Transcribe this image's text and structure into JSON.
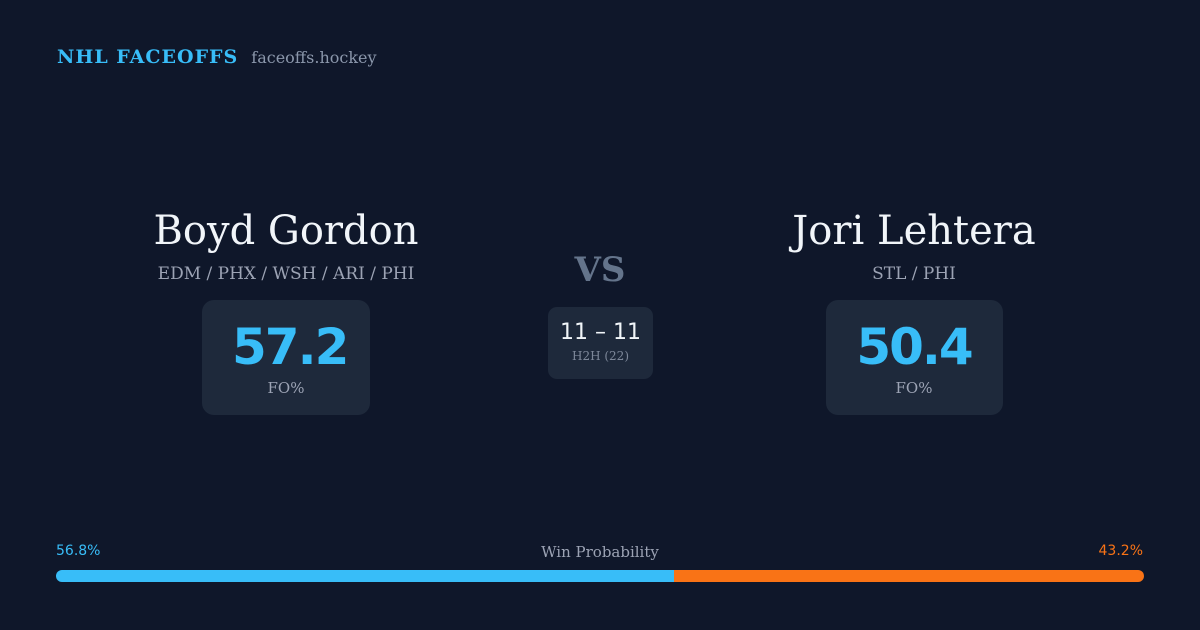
{
  "brand": {
    "name": "NHL FACEOFFS",
    "site": "faceoffs.hockey"
  },
  "player_left": {
    "name": "Boyd Gordon",
    "teams": "EDM / PHX / WSH / ARI / PHI",
    "fo_value": "57.2",
    "fo_label": "FO%"
  },
  "player_right": {
    "name": "Jori Lehtera",
    "teams": "STL / PHI",
    "fo_value": "50.4",
    "fo_label": "FO%"
  },
  "vs_label": "VS",
  "h2h": {
    "score": "11 – 11",
    "label": "H2H (22)"
  },
  "win_probability": {
    "title": "Win Probability",
    "left_label": "56.8%",
    "right_label": "43.2%",
    "left_percent": 56.8,
    "right_percent": 43.2,
    "left_color": "#38bdf8",
    "right_color": "#f97316"
  }
}
